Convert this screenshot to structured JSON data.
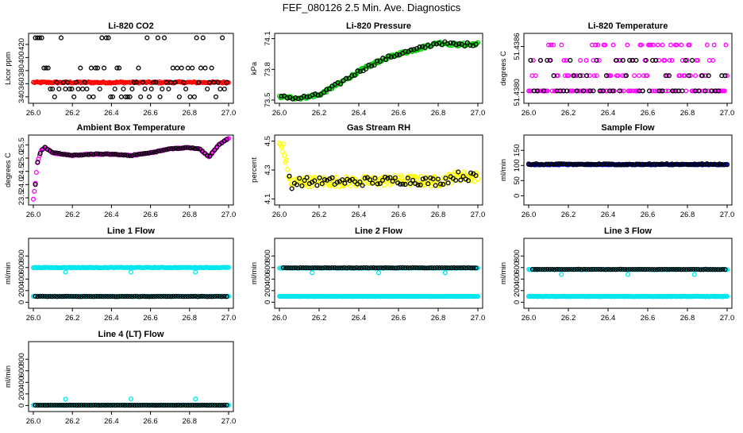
{
  "title": "FEF_080126  2.5 Min. Ave. Diagnostics",
  "colors": {
    "black": "#000000",
    "red": "#ff0000",
    "green": "#00cc00",
    "magenta": "#ff00ff",
    "yellow": "#ffff00",
    "blue": "#0000cc",
    "cyan": "#00e5ee"
  },
  "chart_data": [
    {
      "id": "li820-co2",
      "type": "scatter",
      "title": "Li-820 CO2",
      "xlabel": "",
      "ylabel": "Licor ppm",
      "xlim": [
        26.0,
        27.0
      ],
      "ylim": [
        335,
        432
      ],
      "xticks": [
        26.0,
        26.2,
        26.4,
        26.6,
        26.8,
        27.0
      ],
      "xtick_labels": [
        "26.0",
        "26.2",
        "26.4",
        "26.6",
        "26.8",
        "27.0"
      ],
      "yticks": [
        340,
        360,
        380,
        400,
        420
      ],
      "ytick_labels": [
        "340",
        "360",
        "380",
        "400",
        "420"
      ],
      "series": [
        {
          "name": "fill",
          "color": "red",
          "pattern": "band",
          "from": 26.0,
          "to": 27.0,
          "count": 160,
          "center": 362,
          "jitter": 1.2,
          "r": 2.3
        },
        {
          "name": "points",
          "color": "black",
          "pattern": "sparse",
          "from": 26.01,
          "to": 26.99,
          "count": 90,
          "levels": [
            430,
            352,
            340,
            384,
            362
          ],
          "r": 2.4
        }
      ]
    },
    {
      "id": "li820-pressure",
      "type": "scatter",
      "title": "Li-820 Pressure",
      "xlabel": "",
      "ylabel": "kPa",
      "xlim": [
        26.0,
        27.0
      ],
      "ylim": [
        73.5,
        74.12
      ],
      "xticks": [
        26.0,
        26.2,
        26.4,
        26.6,
        26.8,
        27.0
      ],
      "xtick_labels": [
        "26.0",
        "26.2",
        "26.4",
        "26.6",
        "26.8",
        "27.0"
      ],
      "yticks": [
        73.5,
        73.8,
        74.1
      ],
      "ytick_labels": [
        "73.5",
        "73.8",
        "74.1"
      ],
      "series": [
        {
          "name": "fill",
          "color": "green",
          "pattern": "curve",
          "from": 26.0,
          "to": 27.0,
          "count": 170,
          "jitter": 0.015,
          "r": 2.4,
          "x": [
            26.0,
            26.1,
            26.2,
            26.3,
            26.4,
            26.5,
            26.6,
            26.7,
            26.8,
            26.9,
            27.0
          ],
          "y": [
            73.53,
            73.52,
            73.55,
            73.66,
            73.78,
            73.88,
            73.95,
            74.0,
            74.06,
            74.04,
            74.05
          ]
        },
        {
          "name": "points",
          "color": "black",
          "pattern": "curve",
          "from": 26.01,
          "to": 26.99,
          "count": 70,
          "jitter": 0.018,
          "r": 2.4,
          "x": [
            26.0,
            26.1,
            26.2,
            26.3,
            26.4,
            26.5,
            26.6,
            26.7,
            26.8,
            26.9,
            27.0
          ],
          "y": [
            73.53,
            73.52,
            73.55,
            73.66,
            73.78,
            73.88,
            73.95,
            74.0,
            74.06,
            74.04,
            74.05
          ]
        }
      ]
    },
    {
      "id": "li820-temperature",
      "type": "scatter",
      "title": "Li-820 Temperature",
      "xlabel": "",
      "ylabel": "degrees C",
      "xlim": [
        26.0,
        27.0
      ],
      "ylim": [
        51.4379,
        51.43873
      ],
      "xticks": [
        26.0,
        26.2,
        26.4,
        26.6,
        26.8,
        27.0
      ],
      "xtick_labels": [
        "26.0",
        "26.2",
        "26.4",
        "26.6",
        "26.8",
        "27.0"
      ],
      "yticks": [
        51.438,
        51.4386
      ],
      "ytick_labels": [
        "51.4380",
        "51.4386"
      ],
      "series": [
        {
          "name": "fill",
          "color": "magenta",
          "pattern": "sparse",
          "from": 26.0,
          "to": 27.0,
          "count": 170,
          "levels": [
            51.43802,
            51.43822,
            51.43802,
            51.43822,
            51.43842,
            51.43802,
            51.43862
          ],
          "r": 2.3
        },
        {
          "name": "points",
          "color": "black",
          "pattern": "sparse",
          "from": 26.01,
          "to": 26.99,
          "count": 60,
          "levels": [
            51.43802,
            51.43822,
            51.43802,
            51.43842
          ],
          "r": 2.4
        }
      ]
    },
    {
      "id": "ambient-box-temperature",
      "type": "scatter",
      "title": "Ambient Box Temperature",
      "xlabel": "",
      "ylabel": "degrees C",
      "xlim": [
        26.0,
        27.0
      ],
      "ylim": [
        23.35,
        25.75
      ],
      "xticks": [
        26.0,
        26.2,
        26.4,
        26.6,
        26.8,
        27.0
      ],
      "xtick_labels": [
        "26.0",
        "26.2",
        "26.4",
        "26.6",
        "26.8",
        "27.0"
      ],
      "yticks": [
        23.5,
        24.0,
        24.5,
        25.0,
        25.5
      ],
      "ytick_labels": [
        "23.5",
        "24.0",
        "24.5",
        "25.0",
        "25.5"
      ],
      "series": [
        {
          "name": "fill",
          "color": "magenta",
          "pattern": "curve",
          "from": 26.0,
          "to": 27.0,
          "count": 190,
          "jitter": 0.015,
          "r": 2.4,
          "x": [
            26.0,
            26.01,
            26.02,
            26.04,
            26.06,
            26.1,
            26.2,
            26.3,
            26.4,
            26.5,
            26.6,
            26.7,
            26.8,
            26.85,
            26.9,
            26.95,
            27.0
          ],
          "y": [
            23.45,
            24.0,
            24.8,
            25.3,
            25.4,
            25.2,
            25.1,
            25.15,
            25.15,
            25.1,
            25.2,
            25.35,
            25.4,
            25.35,
            25.05,
            25.5,
            25.75
          ]
        },
        {
          "name": "points",
          "color": "black",
          "pattern": "curve",
          "from": 26.01,
          "to": 26.99,
          "count": 80,
          "jitter": 0.015,
          "r": 2.4,
          "x": [
            26.0,
            26.01,
            26.02,
            26.04,
            26.06,
            26.1,
            26.2,
            26.3,
            26.4,
            26.5,
            26.6,
            26.7,
            26.8,
            26.85,
            26.9,
            26.95,
            27.0
          ],
          "y": [
            23.45,
            24.0,
            24.8,
            25.3,
            25.4,
            25.2,
            25.1,
            25.15,
            25.15,
            25.1,
            25.2,
            25.35,
            25.4,
            25.35,
            25.05,
            25.5,
            25.75
          ]
        }
      ]
    },
    {
      "id": "gas-stream-rh",
      "type": "scatter",
      "title": "Gas Stream RH",
      "xlabel": "",
      "ylabel": "percent",
      "xlim": [
        26.0,
        27.0
      ],
      "ylim": [
        4.08,
        4.52
      ],
      "xticks": [
        26.0,
        26.2,
        26.4,
        26.6,
        26.8,
        27.0
      ],
      "xtick_labels": [
        "26.0",
        "26.2",
        "26.4",
        "26.6",
        "26.8",
        "27.0"
      ],
      "yticks": [
        4.1,
        4.3,
        4.5
      ],
      "ytick_labels": [
        "4.1",
        "4.3",
        "4.5"
      ],
      "series": [
        {
          "name": "fill",
          "color": "yellow",
          "pattern": "curve",
          "from": 26.0,
          "to": 27.0,
          "count": 200,
          "jitter": 0.035,
          "r": 2.5,
          "x": [
            26.0,
            26.02,
            26.04,
            26.06,
            26.1,
            26.2,
            26.4,
            26.6,
            26.8,
            26.9,
            27.0
          ],
          "y": [
            4.48,
            4.45,
            4.3,
            4.2,
            4.22,
            4.22,
            4.22,
            4.23,
            4.22,
            4.26,
            4.25
          ]
        },
        {
          "name": "points",
          "color": "black",
          "pattern": "curve",
          "from": 26.05,
          "to": 26.99,
          "count": 75,
          "jitter": 0.03,
          "r": 2.4,
          "x": [
            26.0,
            26.02,
            26.04,
            26.06,
            26.1,
            26.2,
            26.4,
            26.6,
            26.8,
            26.9,
            27.0
          ],
          "y": [
            4.48,
            4.45,
            4.3,
            4.2,
            4.22,
            4.22,
            4.22,
            4.23,
            4.22,
            4.26,
            4.25
          ]
        }
      ]
    },
    {
      "id": "sample-flow",
      "type": "scatter",
      "title": "Sample Flow",
      "xlabel": "",
      "ylabel": "ml/min",
      "xlim": [
        26.0,
        27.0
      ],
      "ylim": [
        -20,
        190
      ],
      "xticks": [
        26.0,
        26.2,
        26.4,
        26.6,
        26.8,
        27.0
      ],
      "xtick_labels": [
        "26.0",
        "26.2",
        "26.4",
        "26.6",
        "26.8",
        "27.0"
      ],
      "yticks": [
        0,
        50,
        100,
        150
      ],
      "ytick_labels": [
        "0",
        "50",
        "100",
        "150"
      ],
      "series": [
        {
          "name": "fill",
          "color": "blue",
          "pattern": "band",
          "from": 26.0,
          "to": 27.0,
          "count": 170,
          "center": 103,
          "jitter": 1.5,
          "r": 2.3
        },
        {
          "name": "points",
          "color": "black",
          "pattern": "band",
          "from": 26.0,
          "to": 27.0,
          "count": 80,
          "center": 104,
          "jitter": 2.0,
          "r": 2.4
        }
      ]
    },
    {
      "id": "line1-flow",
      "type": "scatter",
      "title": "Line 1 Flow",
      "xlabel": "",
      "ylabel": "ml/min",
      "xlim": [
        26.0,
        27.0
      ],
      "ylim": [
        -50,
        1050
      ],
      "xticks": [
        26.0,
        26.2,
        26.4,
        26.6,
        26.8,
        27.0
      ],
      "xtick_labels": [
        "26.0",
        "26.2",
        "26.4",
        "26.6",
        "26.8",
        "27.0"
      ],
      "yticks": [
        0,
        200,
        400,
        600,
        800
      ],
      "ytick_labels": [
        "0",
        "200",
        "400",
        "600",
        "800"
      ],
      "series": [
        {
          "name": "cyan-high",
          "color": "cyan",
          "pattern": "band",
          "from": 26.0,
          "to": 27.0,
          "count": 170,
          "center": 600,
          "jitter": 5,
          "r": 2.4
        },
        {
          "name": "cyan-low",
          "color": "cyan",
          "pattern": "band",
          "from": 26.0,
          "to": 27.0,
          "count": 170,
          "center": 100,
          "jitter": 3,
          "r": 2.4
        },
        {
          "name": "black",
          "color": "black",
          "pattern": "band",
          "from": 26.01,
          "to": 26.99,
          "count": 80,
          "center": 100,
          "jitter": 3,
          "r": 2.4
        },
        {
          "name": "cyan-outliers",
          "color": "cyan",
          "pattern": "points",
          "r": 2.4,
          "x": [
            26.165,
            26.5,
            26.83
          ],
          "y": [
            520,
            520,
            520
          ]
        }
      ]
    },
    {
      "id": "line2-flow",
      "type": "scatter",
      "title": "Line 2 Flow",
      "xlabel": "",
      "ylabel": "ml/min",
      "xlim": [
        26.0,
        27.0
      ],
      "ylim": [
        -50,
        1050
      ],
      "xticks": [
        26.0,
        26.2,
        26.4,
        26.6,
        26.8,
        27.0
      ],
      "xtick_labels": [
        "26.0",
        "26.2",
        "26.4",
        "26.6",
        "26.8",
        "27.0"
      ],
      "yticks": [
        0,
        200,
        400,
        600,
        800
      ],
      "ytick_labels": [
        "0",
        "200",
        "400",
        "600",
        "800"
      ],
      "series": [
        {
          "name": "cyan-high",
          "color": "cyan",
          "pattern": "band",
          "from": 26.0,
          "to": 27.0,
          "count": 170,
          "center": 590,
          "jitter": 4,
          "r": 2.3
        },
        {
          "name": "cyan-low",
          "color": "cyan",
          "pattern": "band",
          "from": 26.0,
          "to": 27.0,
          "count": 200,
          "center": 100,
          "jitter": 2,
          "r": 2.4
        },
        {
          "name": "black",
          "color": "black",
          "pattern": "band",
          "from": 26.02,
          "to": 26.99,
          "count": 80,
          "center": 595,
          "jitter": 3,
          "r": 2.4
        },
        {
          "name": "cyan-outliers",
          "color": "cyan",
          "pattern": "points",
          "r": 2.4,
          "x": [
            26.165,
            26.5,
            26.835
          ],
          "y": [
            510,
            510,
            510
          ]
        }
      ]
    },
    {
      "id": "line3-flow",
      "type": "scatter",
      "title": "Line 3 Flow",
      "xlabel": "",
      "ylabel": "ml/min",
      "xlim": [
        26.0,
        27.0
      ],
      "ylim": [
        -50,
        1050
      ],
      "xticks": [
        26.0,
        26.2,
        26.4,
        26.6,
        26.8,
        27.0
      ],
      "xtick_labels": [
        "26.0",
        "26.2",
        "26.4",
        "26.6",
        "26.8",
        "27.0"
      ],
      "yticks": [
        0,
        200,
        400,
        600,
        800
      ],
      "ytick_labels": [
        "0",
        "200",
        "400",
        "600",
        "800"
      ],
      "series": [
        {
          "name": "cyan-high",
          "color": "cyan",
          "pattern": "band",
          "from": 26.0,
          "to": 27.0,
          "count": 170,
          "center": 565,
          "jitter": 4,
          "r": 2.3
        },
        {
          "name": "cyan-low",
          "color": "cyan",
          "pattern": "band",
          "from": 26.0,
          "to": 27.0,
          "count": 200,
          "center": 100,
          "jitter": 4,
          "r": 2.4
        },
        {
          "name": "black",
          "color": "black",
          "pattern": "band",
          "from": 26.02,
          "to": 26.99,
          "count": 80,
          "center": 568,
          "jitter": 3,
          "r": 2.4
        },
        {
          "name": "cyan-outliers",
          "color": "cyan",
          "pattern": "points",
          "r": 2.4,
          "x": [
            26.165,
            26.5,
            26.835
          ],
          "y": [
            480,
            480,
            480
          ]
        }
      ]
    },
    {
      "id": "line4-flow",
      "type": "scatter",
      "title": "Line 4 (LT) Flow",
      "xlabel": "",
      "ylabel": "ml/min",
      "xlim": [
        26.0,
        27.0
      ],
      "ylim": [
        -50,
        1050
      ],
      "xticks": [
        26.0,
        26.2,
        26.4,
        26.6,
        26.8,
        27.0
      ],
      "xtick_labels": [
        "26.0",
        "26.2",
        "26.4",
        "26.6",
        "26.8",
        "27.0"
      ],
      "yticks": [
        0,
        200,
        400,
        600,
        800
      ],
      "ytick_labels": [
        "0",
        "200",
        "400",
        "600",
        "800"
      ],
      "series": [
        {
          "name": "cyan",
          "color": "cyan",
          "pattern": "band",
          "from": 26.0,
          "to": 27.0,
          "count": 170,
          "center": 5,
          "jitter": 2,
          "r": 2.4
        },
        {
          "name": "black",
          "color": "black",
          "pattern": "band",
          "from": 26.01,
          "to": 26.99,
          "count": 80,
          "center": 5,
          "jitter": 2,
          "r": 2.4
        },
        {
          "name": "cyan-outliers",
          "color": "cyan",
          "pattern": "points",
          "r": 2.4,
          "x": [
            26.165,
            26.5,
            26.83
          ],
          "y": [
            110,
            115,
            112
          ]
        }
      ]
    }
  ]
}
